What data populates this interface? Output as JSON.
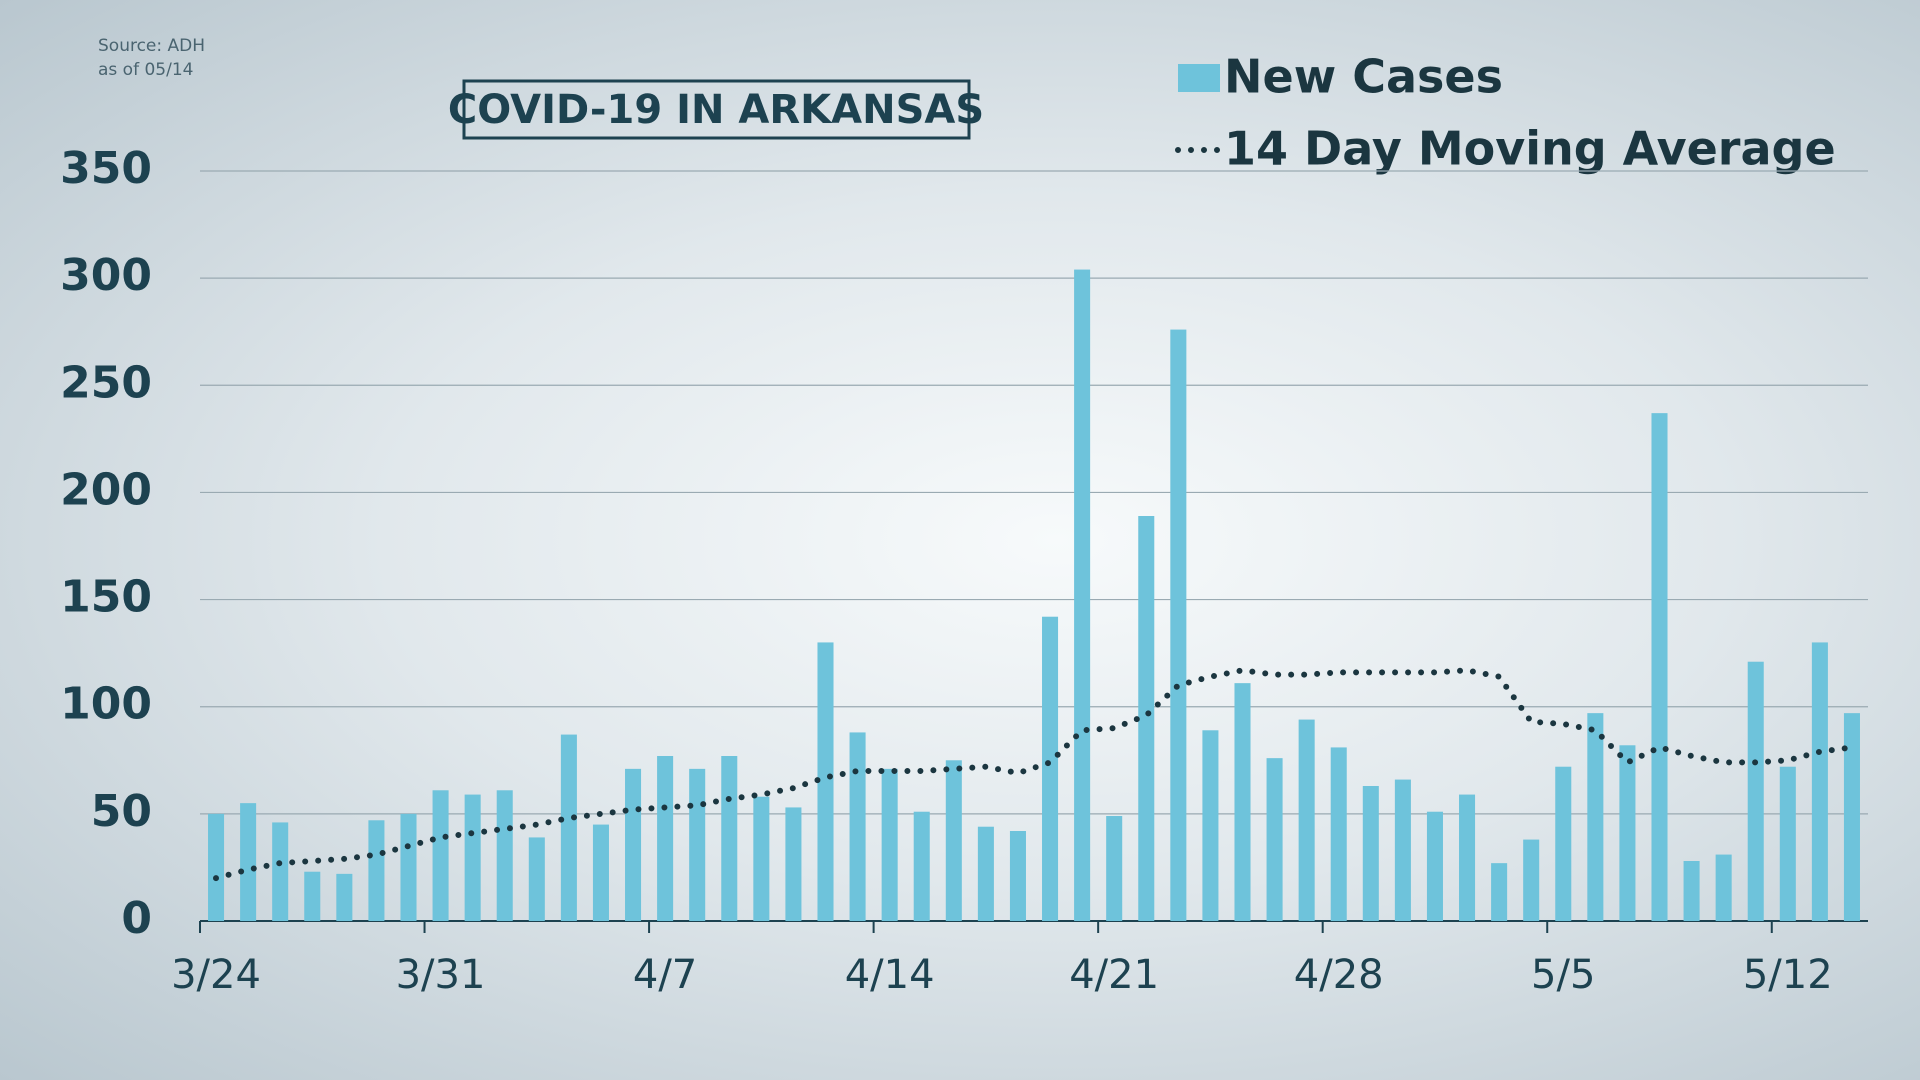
{
  "chart_data": {
    "type": "bar",
    "title": "COVID-19 IN ARKANSAS",
    "source": "Source: ADH",
    "note": "as of 05/14",
    "categories": [
      "3/24",
      null,
      null,
      null,
      null,
      null,
      null,
      "3/31",
      null,
      null,
      null,
      null,
      null,
      null,
      "4/7",
      null,
      null,
      null,
      null,
      null,
      null,
      "4/14",
      null,
      null,
      null,
      null,
      null,
      null,
      "4/21",
      null,
      null,
      null,
      null,
      null,
      null,
      "4/28",
      null,
      null,
      null,
      null,
      null,
      null,
      "5/5",
      null,
      null,
      null,
      null,
      null,
      null,
      "5/12",
      null,
      null
    ],
    "series": [
      {
        "name": "New Cases",
        "type": "bar",
        "color": "#6ec3db",
        "values": [
          50,
          55,
          46,
          23,
          22,
          47,
          50,
          61,
          59,
          61,
          39,
          87,
          45,
          71,
          77,
          71,
          77,
          58,
          53,
          130,
          88,
          71,
          51,
          75,
          44,
          42,
          142,
          304,
          49,
          189,
          276,
          89,
          111,
          76,
          94,
          81,
          63,
          66,
          51,
          59,
          27,
          38,
          72,
          97,
          82,
          237,
          28,
          31,
          121,
          72,
          130,
          97
        ]
      },
      {
        "name": "14 Day Moving Average",
        "type": "line",
        "color": "#1b3640",
        "values": [
          20,
          24,
          27,
          28,
          29,
          31,
          35,
          39,
          41,
          43,
          45,
          48,
          50,
          52,
          53,
          54,
          57,
          59,
          62,
          67,
          70,
          70,
          70,
          71,
          72,
          69,
          74,
          89,
          90,
          96,
          110,
          114,
          117,
          115,
          115,
          116,
          116,
          116,
          116,
          117,
          114,
          93,
          92,
          89,
          74,
          81,
          77,
          74,
          74,
          75,
          79,
          81
        ]
      }
    ],
    "ylim": [
      0,
      350
    ],
    "yticks": [
      0,
      50,
      100,
      150,
      200,
      250,
      300,
      350
    ],
    "grid": true
  }
}
